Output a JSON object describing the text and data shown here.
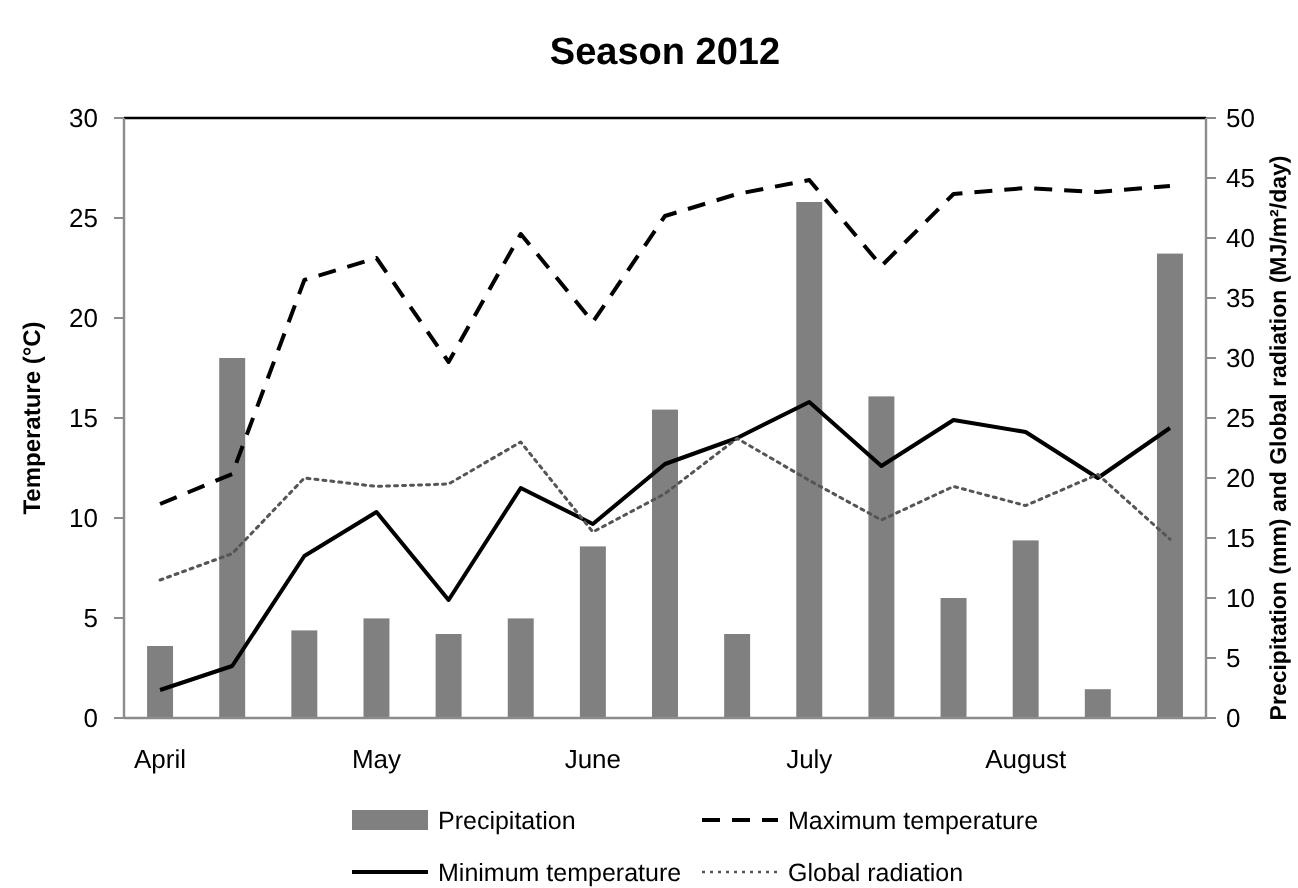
{
  "chart_data": {
    "type": "bar",
    "title": "Season 2012",
    "ylabel": "Temperature (°C)",
    "y2label": "Precipitation (mm)  and Global radiation (MJ/m²/day)",
    "categories": [
      "April",
      null,
      null,
      "May",
      null,
      null,
      "June",
      null,
      null,
      "July",
      null,
      null,
      "August",
      null,
      null
    ],
    "ylim": [
      0,
      30
    ],
    "yticks": [
      0,
      5,
      10,
      15,
      20,
      25,
      30
    ],
    "y2lim": [
      0,
      50
    ],
    "y2ticks": [
      0,
      5,
      10,
      15,
      20,
      25,
      30,
      35,
      40,
      45,
      50
    ],
    "grid": false,
    "legend": "bottom",
    "marker": "none",
    "series": [
      {
        "name": "Precipitation",
        "axis": "y2",
        "color": "#808080",
        "values": [
          6,
          30,
          7.3,
          8.3,
          7,
          8.3,
          14.3,
          25.7,
          7,
          43,
          26.8,
          10,
          14.8,
          2.4,
          38.7
        ]
      },
      {
        "name": "Maximum temperature",
        "type": "line",
        "line_style": "dashed",
        "color": "#000000",
        "values": [
          10.7,
          12.2,
          21.9,
          23,
          17.8,
          24.2,
          19.8,
          25.1,
          26.2,
          26.9,
          22.6,
          26.2,
          26.5,
          26.3,
          26.6
        ]
      },
      {
        "name": "Minimum temperature",
        "type": "line",
        "line_style": "solid",
        "color": "#000000",
        "values": [
          1.4,
          2.6,
          8.1,
          10.3,
          5.9,
          11.5,
          9.7,
          12.7,
          14,
          15.8,
          12.6,
          14.9,
          14.3,
          12,
          14.5
        ]
      },
      {
        "name": "Global radiation",
        "type": "line",
        "axis": "y2",
        "line_style": "dotted",
        "color": "#555555",
        "values": [
          11.5,
          13.7,
          20,
          19.3,
          19.5,
          23,
          15.5,
          18.7,
          23.3,
          19.8,
          16.5,
          19.3,
          17.7,
          20.3,
          14.9
        ]
      }
    ]
  }
}
